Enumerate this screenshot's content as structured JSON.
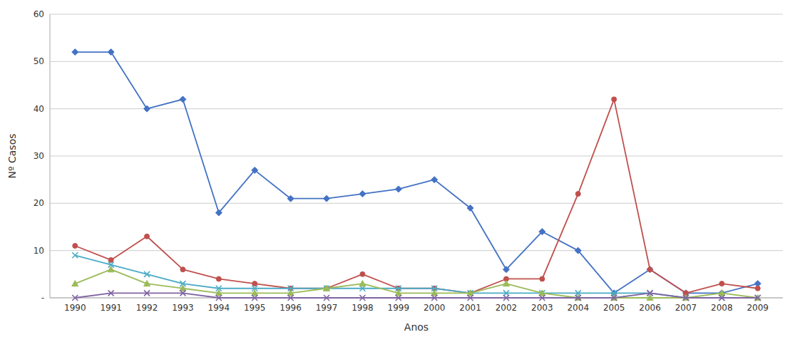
{
  "chart_data": {
    "type": "line",
    "xlabel": "Anos",
    "ylabel": "Nº Casos",
    "x": [
      1990,
      1991,
      1992,
      1993,
      1994,
      1995,
      1996,
      1997,
      1998,
      1999,
      2000,
      2001,
      2002,
      2003,
      2004,
      2005,
      2006,
      2007,
      2008,
      2009
    ],
    "series": [
      {
        "color": "#4472C4",
        "marker": "diamond",
        "values": [
          52,
          52,
          40,
          42,
          18,
          27,
          21,
          21,
          22,
          23,
          25,
          19,
          6,
          14,
          10,
          1,
          6,
          1,
          1,
          3
        ]
      },
      {
        "color": "#C0504D",
        "marker": "circle",
        "values": [
          11,
          8,
          13,
          6,
          4,
          3,
          2,
          2,
          5,
          2,
          2,
          1,
          4,
          4,
          22,
          42,
          6,
          1,
          3,
          2
        ]
      },
      {
        "color": "#4BACC6",
        "marker": "x",
        "values": [
          9,
          7,
          5,
          3,
          2,
          2,
          2,
          2,
          2,
          2,
          2,
          1,
          1,
          1,
          1,
          1,
          1,
          0,
          0,
          0
        ]
      },
      {
        "color": "#9BBB59",
        "marker": "triangle",
        "values": [
          3,
          6,
          3,
          2,
          1,
          1,
          1,
          2,
          3,
          1,
          1,
          1,
          3,
          1,
          0,
          0,
          0,
          0,
          1,
          0
        ]
      },
      {
        "color": "#8064A2",
        "marker": "x",
        "values": [
          0,
          1,
          1,
          1,
          0,
          0,
          0,
          0,
          0,
          0,
          0,
          0,
          0,
          0,
          0,
          0,
          1,
          0,
          0,
          0
        ]
      }
    ],
    "xlim": [
      1989.3,
      2009.7
    ],
    "xticks": [
      1990,
      1991,
      1992,
      1993,
      1994,
      1995,
      1996,
      1997,
      1998,
      1999,
      2000,
      2001,
      2002,
      2003,
      2004,
      2005,
      2006,
      2007,
      2008,
      2009
    ],
    "ylim": [
      0,
      60
    ],
    "yticks": [
      {
        "value": 0,
        "label": "-"
      },
      10,
      20,
      30,
      40,
      50,
      60
    ],
    "grid": true
  }
}
